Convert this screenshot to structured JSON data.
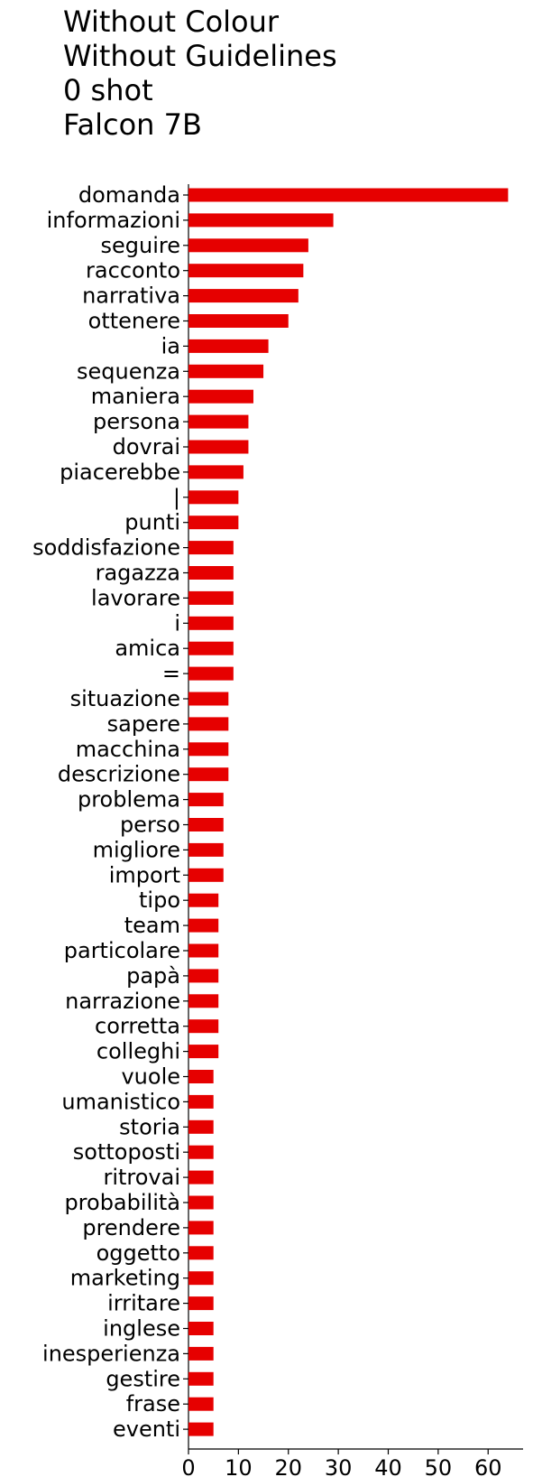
{
  "chart_data": {
    "type": "bar",
    "orientation": "horizontal",
    "title_lines": [
      "Without Colour",
      "Without Guidelines",
      "0 shot",
      "Falcon 7B"
    ],
    "xlabel": "",
    "ylabel": "",
    "bar_color": "#e60000",
    "xlim": [
      0,
      67
    ],
    "xticks": [
      0,
      10,
      20,
      30,
      40,
      50,
      60
    ],
    "grid": false,
    "categories": [
      "domanda",
      "informazioni",
      "seguire",
      "racconto",
      "narrativa",
      "ottenere",
      "ia",
      "sequenza",
      "maniera",
      "persona",
      "dovrai",
      "piacerebbe",
      "|",
      "punti",
      "soddisfazione",
      "ragazza",
      "lavorare",
      "i",
      "amica",
      "=",
      "situazione",
      "sapere",
      "macchina",
      "descrizione",
      "problema",
      "perso",
      "migliore",
      "import",
      "tipo",
      "team",
      "particolare",
      "papà",
      "narrazione",
      "corretta",
      "colleghi",
      "vuole",
      "umanistico",
      "storia",
      "sottoposti",
      "ritrovai",
      "probabilità",
      "prendere",
      "oggetto",
      "marketing",
      "irritare",
      "inglese",
      "inesperienza",
      "gestire",
      "frase",
      "eventi"
    ],
    "values": [
      64,
      29,
      24,
      23,
      22,
      20,
      16,
      15,
      13,
      12,
      12,
      11,
      10,
      10,
      9,
      9,
      9,
      9,
      9,
      9,
      8,
      8,
      8,
      8,
      7,
      7,
      7,
      7,
      6,
      6,
      6,
      6,
      6,
      6,
      6,
      5,
      5,
      5,
      5,
      5,
      5,
      5,
      5,
      5,
      5,
      5,
      5,
      5,
      5,
      5
    ]
  }
}
